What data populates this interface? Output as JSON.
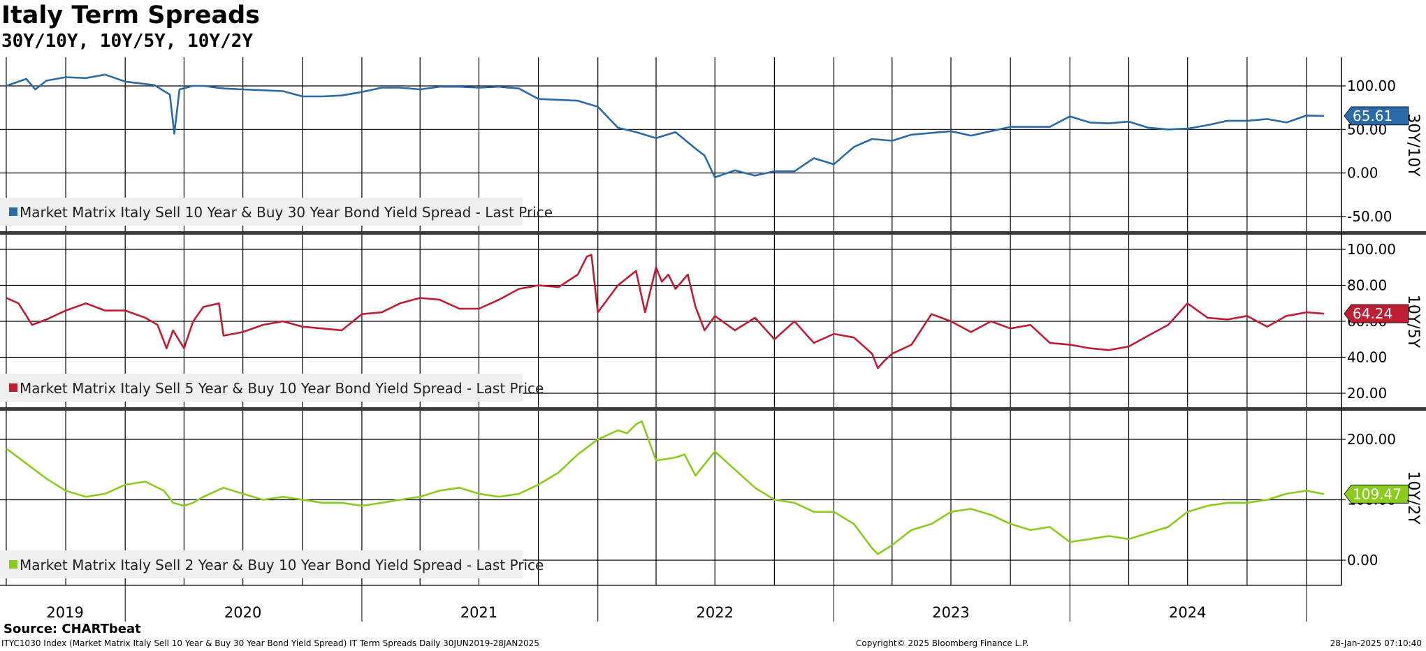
{
  "title": "Italy Term Spreads",
  "subtitle": "30Y/10Y, 10Y/5Y, 10Y/2Y",
  "source": "Source: CHARTbeat",
  "footer": {
    "description": "ITYC1030 Index (Market Matrix Italy Sell 10 Year & Buy 30 Year Bond Yield Spread) IT Term Spreads  Daily 30JUN2019-28JAN2025",
    "copyright": "Copyright© 2025 Bloomberg Finance L.P.",
    "timestamp": "28-Jan-2025 07:10:40"
  },
  "x_axis": {
    "years": [
      "2019",
      "2020",
      "2021",
      "2022",
      "2023",
      "2024"
    ],
    "start": "30JUN2019",
    "end": "28JAN2025"
  },
  "chart_data": [
    {
      "type": "line",
      "panel_label": "30Y/10Y",
      "color": "#2a6aa9",
      "legend": "Market Matrix Italy Sell 10 Year & Buy 30 Year Bond Yield Spread - Last Price",
      "yticks": [
        "100.00",
        "50.00",
        "0.00",
        "-50.00"
      ],
      "ylim": [
        -55,
        130
      ],
      "last_value": "65.61",
      "series": [
        {
          "name": "Market Matrix Italy Sell 10 Year & Buy 30 Year Bond Yield Spread - Last Price",
          "x": [
            "2019-07-01",
            "2019-08-01",
            "2019-08-15",
            "2019-09-01",
            "2019-10-01",
            "2019-11-01",
            "2019-12-01",
            "2020-01-01",
            "2020-02-15",
            "2020-03-10",
            "2020-03-17",
            "2020-03-25",
            "2020-04-15",
            "2020-05-01",
            "2020-06-01",
            "2020-07-01",
            "2020-08-01",
            "2020-09-01",
            "2020-10-01",
            "2020-11-01",
            "2020-12-01",
            "2021-01-01",
            "2021-02-01",
            "2021-03-01",
            "2021-04-01",
            "2021-05-01",
            "2021-06-01",
            "2021-07-01",
            "2021-08-01",
            "2021-09-01",
            "2021-10-01",
            "2021-11-01",
            "2021-12-01",
            "2022-01-01",
            "2022-02-01",
            "2022-03-01",
            "2022-04-01",
            "2022-05-01",
            "2022-06-01",
            "2022-06-15",
            "2022-07-01",
            "2022-08-01",
            "2022-09-01",
            "2022-10-01",
            "2022-11-01",
            "2022-12-01",
            "2023-01-01",
            "2023-02-01",
            "2023-03-01",
            "2023-04-01",
            "2023-05-01",
            "2023-06-01",
            "2023-07-01",
            "2023-08-01",
            "2023-09-01",
            "2023-10-01",
            "2023-11-01",
            "2023-12-01",
            "2024-01-01",
            "2024-02-01",
            "2024-03-01",
            "2024-04-01",
            "2024-05-01",
            "2024-06-01",
            "2024-07-01",
            "2024-08-01",
            "2024-09-01",
            "2024-10-01",
            "2024-11-01",
            "2024-12-01",
            "2025-01-01",
            "2025-01-28"
          ],
          "y": [
            100,
            108,
            96,
            106,
            110,
            109,
            113,
            105,
            101,
            90,
            45,
            96,
            100,
            100,
            97,
            96,
            95,
            94,
            88,
            88,
            89,
            93,
            98,
            98,
            96,
            99,
            99,
            98,
            99,
            97,
            85,
            84,
            83,
            76,
            52,
            47,
            40,
            47,
            28,
            20,
            -5,
            3,
            -3,
            2,
            2,
            17,
            10,
            30,
            39,
            37,
            44,
            46,
            48,
            43,
            48,
            53,
            53,
            53,
            65,
            58,
            57,
            59,
            52,
            50,
            51,
            55,
            60,
            60,
            62,
            58,
            66,
            65.61
          ]
        }
      ]
    },
    {
      "type": "line",
      "panel_label": "10Y/5Y",
      "color": "#c01c33",
      "legend": "Market Matrix Italy Sell 5 Year & Buy 10 Year Bond Yield Spread - Last Price",
      "yticks": [
        "100.00",
        "80.00",
        "60.00",
        "40.00",
        "20.00"
      ],
      "ylim": [
        12,
        103
      ],
      "last_value": "64.24",
      "series": [
        {
          "name": "Market Matrix Italy Sell 5 Year & Buy 10 Year Bond Yield Spread - Last Price",
          "x": [
            "2019-07-01",
            "2019-07-20",
            "2019-08-10",
            "2019-09-01",
            "2019-10-01",
            "2019-11-01",
            "2019-12-01",
            "2020-01-01",
            "2020-02-01",
            "2020-02-20",
            "2020-03-05",
            "2020-03-15",
            "2020-04-01",
            "2020-04-15",
            "2020-05-01",
            "2020-05-25",
            "2020-06-01",
            "2020-07-01",
            "2020-08-01",
            "2020-09-01",
            "2020-10-01",
            "2020-11-01",
            "2020-12-01",
            "2021-01-01",
            "2021-02-01",
            "2021-03-01",
            "2021-04-01",
            "2021-05-01",
            "2021-06-01",
            "2021-07-01",
            "2021-08-01",
            "2021-09-01",
            "2021-10-01",
            "2021-11-01",
            "2021-12-01",
            "2021-12-15",
            "2021-12-22",
            "2022-01-01",
            "2022-02-01",
            "2022-02-15",
            "2022-03-01",
            "2022-03-15",
            "2022-04-01",
            "2022-04-10",
            "2022-04-20",
            "2022-05-01",
            "2022-05-20",
            "2022-06-01",
            "2022-06-15",
            "2022-07-01",
            "2022-08-01",
            "2022-09-01",
            "2022-10-01",
            "2022-11-01",
            "2022-12-01",
            "2023-01-01",
            "2023-02-01",
            "2023-03-01",
            "2023-03-10",
            "2023-03-20",
            "2023-04-01",
            "2023-05-01",
            "2023-06-01",
            "2023-07-01",
            "2023-08-01",
            "2023-09-01",
            "2023-10-01",
            "2023-11-01",
            "2023-12-01",
            "2024-01-01",
            "2024-02-01",
            "2024-03-01",
            "2024-04-01",
            "2024-05-01",
            "2024-06-01",
            "2024-07-01",
            "2024-08-01",
            "2024-09-01",
            "2024-10-01",
            "2024-11-01",
            "2024-12-01",
            "2025-01-01",
            "2025-01-28"
          ],
          "y": [
            73,
            70,
            58,
            61,
            66,
            70,
            66,
            66,
            62,
            58,
            45,
            55,
            45,
            60,
            68,
            70,
            52,
            54,
            58,
            60,
            57,
            56,
            55,
            64,
            65,
            70,
            73,
            72,
            67,
            67,
            72,
            78,
            80,
            79,
            86,
            96,
            97,
            65,
            80,
            84,
            88,
            65,
            90,
            82,
            86,
            78,
            86,
            68,
            55,
            63,
            55,
            62,
            50,
            60,
            48,
            53,
            51,
            42,
            34,
            38,
            42,
            47,
            64,
            60,
            54,
            60,
            56,
            58,
            48,
            47,
            45,
            44,
            46,
            52,
            58,
            70,
            62,
            61,
            63,
            57,
            63,
            65,
            64.24
          ]
        }
      ]
    },
    {
      "type": "line",
      "panel_label": "10Y/2Y",
      "color": "#8acc1c",
      "legend": "Market Matrix Italy Sell 2 Year & Buy 10 Year Bond Yield Spread - Last Price",
      "yticks": [
        "200.00",
        "100.00",
        "0.00"
      ],
      "ylim": [
        -20,
        255
      ],
      "last_value": "109.47",
      "series": [
        {
          "name": "Market Matrix Italy Sell 2 Year & Buy 10 Year Bond Yield Spread - Last Price",
          "x": [
            "2019-07-01",
            "2019-08-01",
            "2019-09-01",
            "2019-10-01",
            "2019-11-01",
            "2019-12-01",
            "2020-01-01",
            "2020-02-01",
            "2020-03-01",
            "2020-03-15",
            "2020-04-01",
            "2020-04-15",
            "2020-05-01",
            "2020-06-01",
            "2020-07-01",
            "2020-08-01",
            "2020-09-01",
            "2020-10-01",
            "2020-11-01",
            "2020-12-01",
            "2021-01-01",
            "2021-02-01",
            "2021-03-01",
            "2021-04-01",
            "2021-05-01",
            "2021-06-01",
            "2021-07-01",
            "2021-08-01",
            "2021-09-01",
            "2021-10-01",
            "2021-11-01",
            "2021-12-01",
            "2022-01-01",
            "2022-02-01",
            "2022-02-15",
            "2022-03-01",
            "2022-03-10",
            "2022-04-01",
            "2022-05-01",
            "2022-05-15",
            "2022-06-01",
            "2022-07-01",
            "2022-08-01",
            "2022-09-01",
            "2022-10-01",
            "2022-11-01",
            "2022-12-01",
            "2023-01-01",
            "2023-02-01",
            "2023-03-01",
            "2023-03-10",
            "2023-04-01",
            "2023-05-01",
            "2023-06-01",
            "2023-07-01",
            "2023-08-01",
            "2023-09-01",
            "2023-10-01",
            "2023-11-01",
            "2023-12-01",
            "2024-01-01",
            "2024-02-01",
            "2024-03-01",
            "2024-04-01",
            "2024-05-01",
            "2024-06-01",
            "2024-07-01",
            "2024-08-01",
            "2024-09-01",
            "2024-10-01",
            "2024-11-01",
            "2024-12-01",
            "2025-01-01",
            "2025-01-28"
          ],
          "y": [
            185,
            160,
            135,
            115,
            105,
            110,
            125,
            130,
            115,
            95,
            90,
            95,
            105,
            120,
            110,
            100,
            105,
            100,
            95,
            95,
            90,
            95,
            100,
            105,
            115,
            120,
            110,
            105,
            110,
            125,
            145,
            175,
            200,
            215,
            210,
            225,
            230,
            165,
            170,
            175,
            140,
            180,
            150,
            120,
            100,
            95,
            80,
            80,
            60,
            20,
            10,
            25,
            50,
            60,
            80,
            85,
            75,
            60,
            50,
            55,
            30,
            35,
            40,
            35,
            45,
            55,
            80,
            90,
            95,
            95,
            100,
            110,
            115,
            109.47
          ]
        }
      ]
    }
  ]
}
